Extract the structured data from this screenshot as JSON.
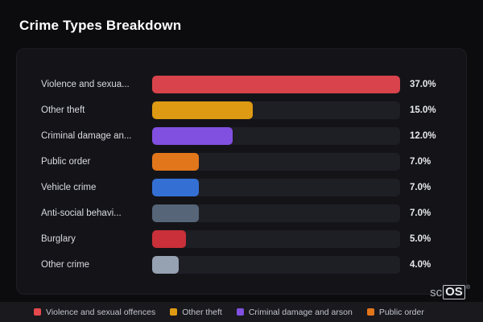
{
  "title": "Crime Types Breakdown",
  "chart_data": {
    "type": "bar",
    "orientation": "horizontal",
    "title": "Crime Types Breakdown",
    "categories": [
      "Violence and sexua...",
      "Other theft",
      "Criminal damage an...",
      "Public order",
      "Vehicle crime",
      "Anti-social behavi...",
      "Burglary",
      "Other crime"
    ],
    "values": [
      37.0,
      15.0,
      12.0,
      7.0,
      7.0,
      7.0,
      5.0,
      4.0
    ],
    "value_labels": [
      "37.0%",
      "15.0%",
      "12.0%",
      "7.0%",
      "7.0%",
      "7.0%",
      "5.0%",
      "4.0%"
    ],
    "bar_colors": [
      "#d9434b",
      "#dd9a12",
      "#8150e0",
      "#e2761b",
      "#3470d4",
      "#566578",
      "#c93039",
      "#96a1b1"
    ],
    "max_value": 37.0,
    "xlim": [
      0,
      37.0
    ],
    "grid": false,
    "legend_position": "bottom"
  },
  "legend": {
    "items": [
      {
        "label": "Violence and sexual offences",
        "color": "#e5484d"
      },
      {
        "label": "Other theft",
        "color": "#dd9a12"
      },
      {
        "label": "Criminal damage and arson",
        "color": "#8150e0"
      },
      {
        "label": "Public order",
        "color": "#e2761b"
      }
    ]
  },
  "logo": {
    "prefix": "sc",
    "box": "OS",
    "mark": "®"
  }
}
